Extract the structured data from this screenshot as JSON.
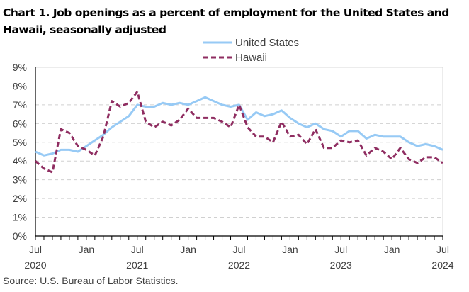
{
  "title": "Chart 1. Job openings as a percent of employment for the United States and Hawaii, seasonally adjusted",
  "source": "Source: U.S. Bureau of Labor Statistics.",
  "chart_data": {
    "type": "line",
    "title": "Chart 1. Job openings as a percent of employment for the United States and Hawaii, seasonally adjusted",
    "xlabel": "",
    "ylabel": "",
    "ylim": [
      0,
      9
    ],
    "yticks": [
      "0%",
      "1%",
      "2%",
      "3%",
      "4%",
      "5%",
      "6%",
      "7%",
      "8%",
      "9%"
    ],
    "grid": true,
    "legend_position": "top-center",
    "x_tick_labels": [
      {
        "month_index": 0,
        "month": "Jul",
        "year": "2020"
      },
      {
        "month_index": 6,
        "month": "Jan",
        "year": ""
      },
      {
        "month_index": 12,
        "month": "Jul",
        "year": "2021"
      },
      {
        "month_index": 18,
        "month": "Jan",
        "year": ""
      },
      {
        "month_index": 24,
        "month": "Jul",
        "year": "2022"
      },
      {
        "month_index": 30,
        "month": "Jan",
        "year": ""
      },
      {
        "month_index": 36,
        "month": "Jul",
        "year": "2023"
      },
      {
        "month_index": 42,
        "month": "Jan",
        "year": ""
      },
      {
        "month_index": 48,
        "month": "Jul",
        "year": "2024"
      }
    ],
    "x_start": "Jul 2020",
    "x_end": "Jul 2024",
    "series": [
      {
        "name": "United States",
        "color": "#97CAF5",
        "style": "solid",
        "values": [
          4.5,
          4.3,
          4.4,
          4.6,
          4.6,
          4.5,
          4.8,
          5.1,
          5.4,
          5.8,
          6.1,
          6.4,
          7.0,
          6.9,
          6.9,
          7.1,
          7.0,
          7.1,
          7.0,
          7.2,
          7.4,
          7.2,
          7.0,
          6.9,
          7.0,
          6.2,
          6.6,
          6.4,
          6.5,
          6.7,
          6.3,
          6.0,
          5.8,
          6.0,
          5.7,
          5.6,
          5.3,
          5.6,
          5.6,
          5.2,
          5.4,
          5.3,
          5.3,
          5.3,
          5.0,
          4.8,
          4.9,
          4.8,
          4.6
        ]
      },
      {
        "name": "Hawaii",
        "color": "#8F2D61",
        "style": "dashed",
        "values": [
          4.0,
          3.6,
          3.4,
          5.7,
          5.5,
          4.8,
          4.6,
          4.3,
          5.3,
          7.2,
          6.9,
          7.1,
          7.7,
          6.1,
          5.8,
          6.1,
          5.9,
          6.2,
          6.8,
          6.3,
          6.3,
          6.3,
          6.1,
          5.8,
          7.0,
          5.8,
          5.3,
          5.3,
          5.0,
          6.1,
          5.3,
          5.4,
          4.9,
          5.7,
          4.7,
          4.7,
          5.1,
          5.0,
          5.1,
          4.3,
          4.7,
          4.5,
          4.1,
          4.7,
          4.1,
          3.9,
          4.2,
          4.2,
          3.9
        ]
      }
    ]
  }
}
